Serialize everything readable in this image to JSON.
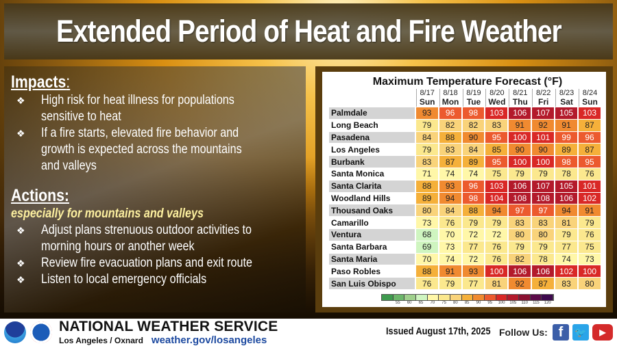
{
  "header": {
    "title": "Extended Period of Heat and Fire Weather"
  },
  "impacts": {
    "title": "Impacts",
    "colon": ":",
    "bullet_icon": "❖",
    "items": [
      "High risk for heat illness for populations sensitive to heat",
      "If a fire starts, elevated fire behavior and growth is expected across the mountains and valleys"
    ]
  },
  "actions": {
    "title": "Actions:",
    "subtitle": "especially for mountains and valleys",
    "bullet_icon": "❖",
    "items": [
      "Adjust plans strenuous outdoor activities to morning hours or another week",
      "Review fire evacuation plans and exit route",
      "Listen to local emergency officials"
    ]
  },
  "chart_data": {
    "type": "table",
    "title": "Maximum Temperature Forecast (°F)",
    "columns": [
      {
        "date": "8/17",
        "day": "Sun"
      },
      {
        "date": "8/18",
        "day": "Mon"
      },
      {
        "date": "8/19",
        "day": "Tue"
      },
      {
        "date": "8/20",
        "day": "Wed"
      },
      {
        "date": "8/21",
        "day": "Thu"
      },
      {
        "date": "8/22",
        "day": "Fri"
      },
      {
        "date": "8/23",
        "day": "Sat"
      },
      {
        "date": "8/24",
        "day": "Sun"
      }
    ],
    "rows": [
      {
        "city": "Palmdale",
        "values": [
          93,
          96,
          98,
          103,
          106,
          107,
          105,
          103
        ]
      },
      {
        "city": "Long Beach",
        "values": [
          79,
          82,
          82,
          83,
          91,
          92,
          91,
          87
        ]
      },
      {
        "city": "Pasadena",
        "values": [
          84,
          88,
          90,
          95,
          100,
          101,
          99,
          96
        ]
      },
      {
        "city": "Los Angeles",
        "values": [
          79,
          83,
          84,
          85,
          90,
          90,
          89,
          87
        ]
      },
      {
        "city": "Burbank",
        "values": [
          83,
          87,
          89,
          95,
          100,
          100,
          98,
          95
        ]
      },
      {
        "city": "Santa Monica",
        "values": [
          71,
          74,
          74,
          75,
          79,
          79,
          78,
          76
        ]
      },
      {
        "city": "Santa Clarita",
        "values": [
          88,
          93,
          96,
          103,
          106,
          107,
          105,
          101
        ]
      },
      {
        "city": "Woodland Hills",
        "values": [
          89,
          94,
          98,
          104,
          108,
          108,
          106,
          102
        ]
      },
      {
        "city": "Thousand Oaks",
        "values": [
          80,
          84,
          88,
          94,
          97,
          97,
          94,
          91
        ]
      },
      {
        "city": "Camarillo",
        "values": [
          73,
          76,
          79,
          79,
          83,
          83,
          81,
          79
        ]
      },
      {
        "city": "Ventura",
        "values": [
          68,
          70,
          72,
          72,
          80,
          80,
          79,
          76
        ]
      },
      {
        "city": "Santa Barbara",
        "values": [
          69,
          73,
          77,
          76,
          79,
          79,
          77,
          75
        ]
      },
      {
        "city": "Santa Maria",
        "values": [
          70,
          74,
          72,
          76,
          82,
          78,
          74,
          73
        ]
      },
      {
        "city": "Paso Robles",
        "values": [
          88,
          91,
          93,
          100,
          106,
          106,
          102,
          100
        ]
      },
      {
        "city": "San Luis Obispo",
        "values": [
          76,
          79,
          77,
          81,
          92,
          87,
          83,
          80
        ]
      }
    ],
    "legend": {
      "ticks": [
        55,
        60,
        65,
        70,
        75,
        80,
        85,
        90,
        95,
        100,
        105,
        110,
        115,
        120
      ],
      "colors": [
        "#3e9a4e",
        "#6cb66a",
        "#9fd08c",
        "#cff5c0",
        "#fff7a8",
        "#fbe88e",
        "#f9d37a",
        "#f5b03a",
        "#f08a30",
        "#ec5a2e",
        "#d92826",
        "#b31a2b",
        "#8a1030",
        "#5c0c4a",
        "#3e0a4e"
      ]
    }
  },
  "footer": {
    "org": "NATIONAL WEATHER SERVICE",
    "office": "Los Angeles / Oxnard",
    "url": "weather.gov/losangeles",
    "issued": "Issued August 17th, 2025",
    "follow": "Follow Us:",
    "social": {
      "facebook": "f",
      "twitter": "🐦",
      "youtube": "▶"
    }
  }
}
